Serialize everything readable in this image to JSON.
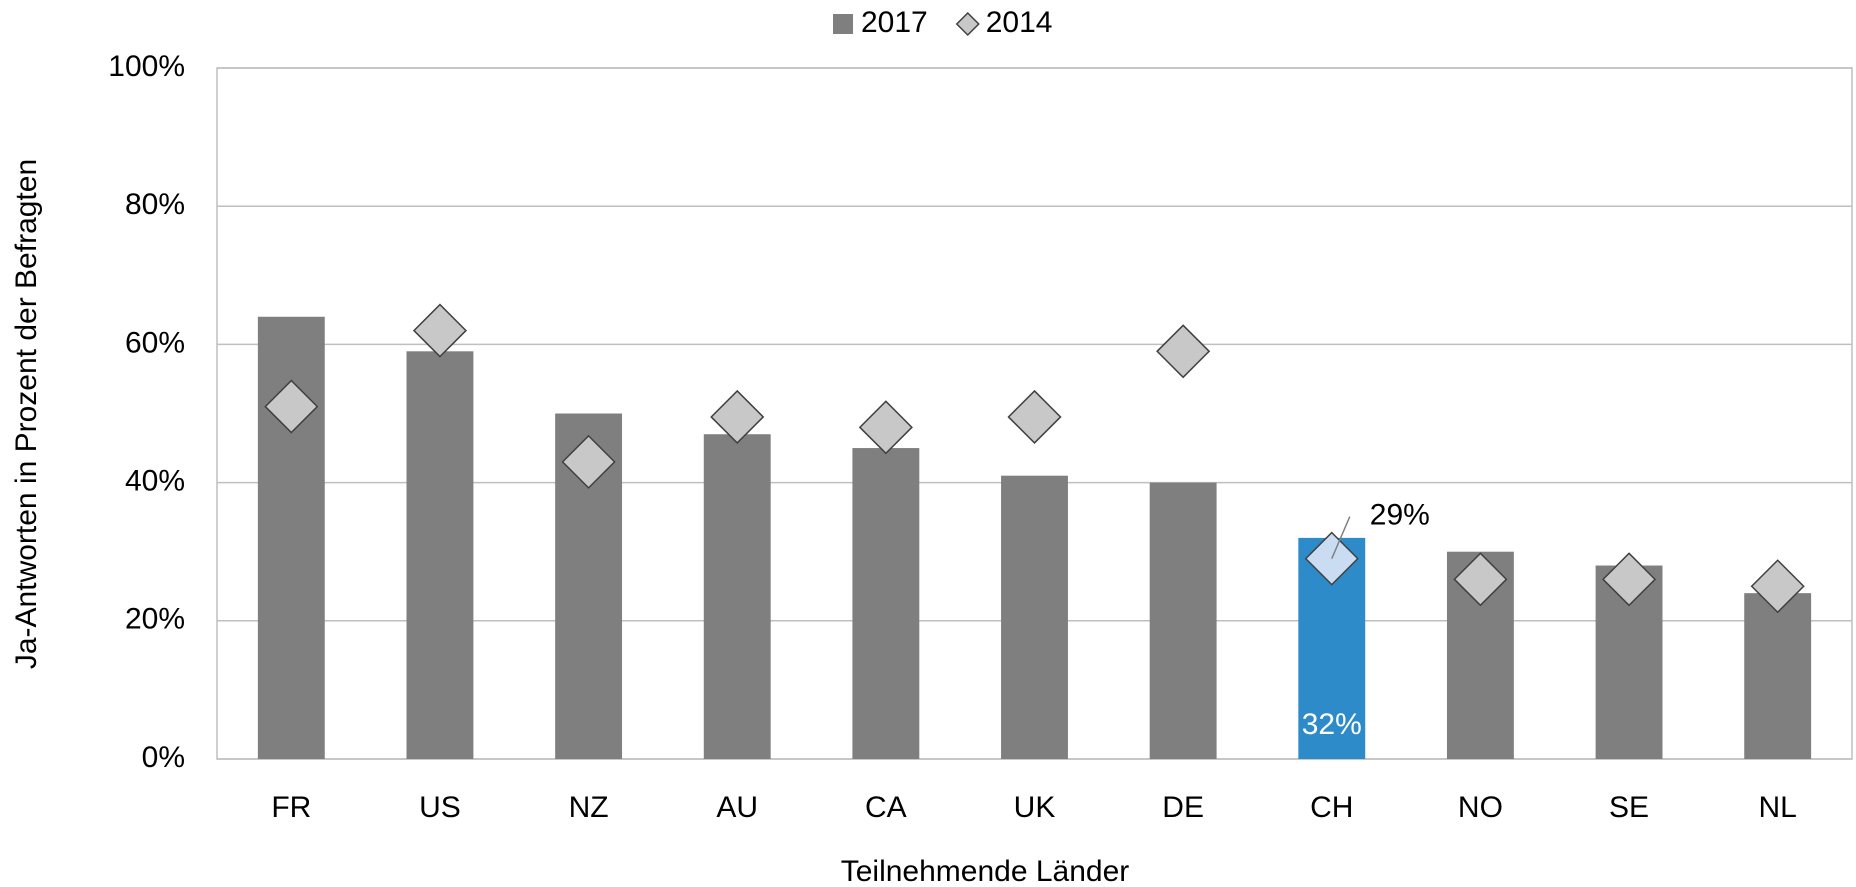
{
  "chart_data": {
    "type": "bar",
    "categories": [
      "FR",
      "US",
      "NZ",
      "AU",
      "CA",
      "UK",
      "DE",
      "CH",
      "NO",
      "SE",
      "NL"
    ],
    "series": [
      {
        "name": "2017",
        "type": "bar",
        "color": "#7f7f7f",
        "colors": [
          "#7f7f7f",
          "#7f7f7f",
          "#7f7f7f",
          "#7f7f7f",
          "#7f7f7f",
          "#7f7f7f",
          "#7f7f7f",
          "#2e8bc9",
          "#7f7f7f",
          "#7f7f7f",
          "#7f7f7f"
        ],
        "values": [
          64,
          59,
          50,
          47,
          45,
          41,
          40,
          32,
          30,
          28,
          24
        ],
        "value_labels": [
          null,
          null,
          null,
          null,
          null,
          null,
          null,
          "32%",
          null,
          null,
          null
        ]
      },
      {
        "name": "2014",
        "type": "scatter",
        "color": "#c8c8c8",
        "colors": [
          "#c8c8c8",
          "#c8c8c8",
          "#c8c8c8",
          "#c8c8c8",
          "#c8c8c8",
          "#c8c8c8",
          "#c8c8c8",
          "#c9dcf2",
          "#c8c8c8",
          "#c8c8c8",
          "#c8c8c8"
        ],
        "values": [
          51,
          62,
          43,
          49.5,
          48,
          49.5,
          59,
          29,
          26,
          26,
          25
        ],
        "value_labels": [
          null,
          null,
          null,
          null,
          null,
          null,
          null,
          "29%",
          null,
          null,
          null
        ]
      }
    ],
    "x_label": "Teilnehmende Länder",
    "y_label": "Ja-Antworten in Prozent der Befragten",
    "ylim": [
      0,
      100
    ],
    "yticks": [
      {
        "value": 0,
        "label": "0%"
      },
      {
        "value": 20,
        "label": "20%"
      },
      {
        "value": 40,
        "label": "40%"
      },
      {
        "value": 60,
        "label": "60%"
      },
      {
        "value": 80,
        "label": "80%"
      },
      {
        "value": 100,
        "label": "100%"
      }
    ],
    "grid": true,
    "legend": "top"
  }
}
